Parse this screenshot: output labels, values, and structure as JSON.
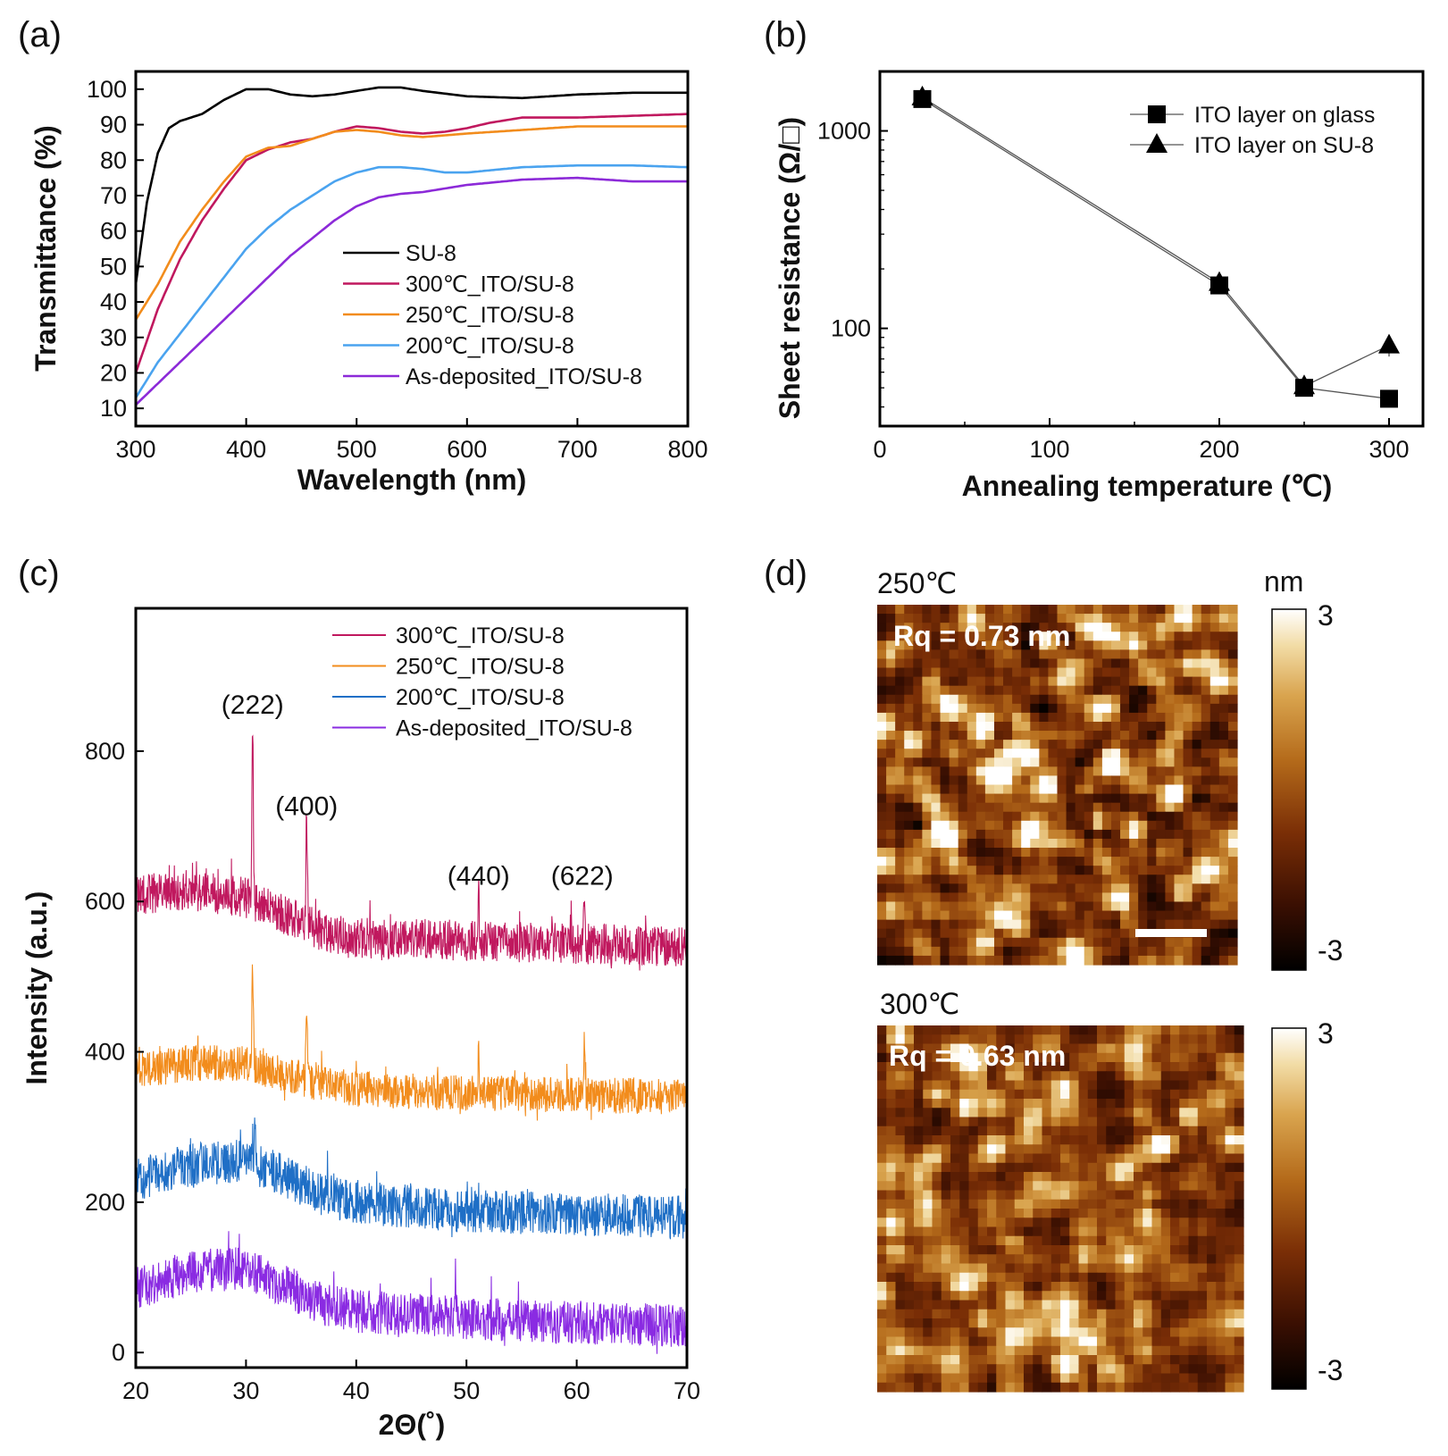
{
  "chart_data": [
    {
      "panel": "(a)",
      "type": "line",
      "xlabel": "Wavelength (nm)",
      "ylabel": "Transmittance (%)",
      "xlim": [
        300,
        800
      ],
      "ylim": [
        5,
        105
      ],
      "xticks": [
        300,
        400,
        500,
        600,
        700,
        800
      ],
      "yticks": [
        10,
        20,
        30,
        40,
        50,
        60,
        70,
        80,
        90,
        100
      ],
      "legend_position": "center-right",
      "series": [
        {
          "name": "SU-8",
          "color": "#000000",
          "x": [
            300,
            310,
            320,
            330,
            340,
            360,
            380,
            400,
            420,
            440,
            460,
            480,
            500,
            520,
            540,
            560,
            600,
            650,
            700,
            750,
            800
          ],
          "y": [
            45,
            68,
            82,
            89,
            91,
            93,
            97,
            100,
            100,
            98.5,
            98,
            98.5,
            99.5,
            100.5,
            100.5,
            99.5,
            98,
            97.5,
            98.5,
            99,
            99
          ]
        },
        {
          "name": "300℃_ITO/SU-8",
          "color": "#c0185e",
          "x": [
            300,
            320,
            340,
            360,
            380,
            400,
            420,
            440,
            460,
            480,
            500,
            520,
            540,
            560,
            580,
            600,
            620,
            650,
            700,
            750,
            800
          ],
          "y": [
            20,
            38,
            52,
            63,
            72,
            80,
            83,
            85,
            86,
            88,
            89.5,
            89,
            88,
            87.5,
            88,
            89,
            90.5,
            92,
            92,
            92.5,
            93
          ]
        },
        {
          "name": "250℃_ITO/SU-8",
          "color": "#f28c1c",
          "x": [
            300,
            320,
            340,
            360,
            380,
            400,
            420,
            440,
            460,
            480,
            500,
            520,
            540,
            560,
            580,
            600,
            650,
            700,
            750,
            800
          ],
          "y": [
            35,
            45,
            57,
            66,
            74,
            81,
            83.5,
            84,
            86,
            88,
            88.5,
            88,
            87,
            86.5,
            87,
            87.5,
            88.5,
            89.5,
            89.5,
            89.5
          ]
        },
        {
          "name": "200℃_ITO/SU-8",
          "color": "#4aa3ef",
          "x": [
            300,
            320,
            340,
            360,
            380,
            400,
            420,
            440,
            460,
            480,
            500,
            520,
            540,
            560,
            580,
            600,
            650,
            700,
            750,
            800
          ],
          "y": [
            13,
            23,
            31,
            39,
            47,
            55,
            61,
            66,
            70,
            74,
            76.5,
            78,
            78,
            77.5,
            76.5,
            76.5,
            78,
            78.5,
            78.5,
            78
          ]
        },
        {
          "name": "As-deposited_ITO/SU-8",
          "color": "#8c2ad8",
          "x": [
            300,
            320,
            340,
            360,
            380,
            400,
            420,
            440,
            460,
            480,
            500,
            520,
            540,
            560,
            580,
            600,
            650,
            700,
            750,
            800
          ],
          "y": [
            11,
            17,
            23,
            29,
            35,
            41,
            47,
            53,
            58,
            63,
            67,
            69.5,
            70.5,
            71,
            72,
            73,
            74.5,
            75,
            74,
            74
          ]
        }
      ]
    },
    {
      "panel": "(b)",
      "type": "line",
      "xlabel": "Annealing temperature (℃)",
      "ylabel": "Sheet resistance (Ω/□)",
      "yscale": "log",
      "xlim": [
        0,
        320
      ],
      "ylim": [
        32,
        2000
      ],
      "xticks": [
        0,
        100,
        200,
        300
      ],
      "yticks": [
        100,
        1000
      ],
      "legend_position": "top-right",
      "series": [
        {
          "name": "ITO layer on glass",
          "marker": "square",
          "x": [
            25,
            200,
            250,
            300
          ],
          "y": [
            1450,
            165,
            50,
            44
          ]
        },
        {
          "name": "ITO layer on SU-8",
          "marker": "triangle",
          "x": [
            25,
            200,
            250,
            300
          ],
          "y": [
            1480,
            170,
            51,
            82
          ],
          "error": [
            0,
            0,
            0,
            10
          ]
        }
      ]
    },
    {
      "panel": "(c)",
      "type": "line",
      "xlabel": "2Θ(˚)",
      "ylabel": "Intensity (a.u.)",
      "xlim": [
        20,
        70
      ],
      "ylim": [
        -20,
        990
      ],
      "xticks": [
        20,
        30,
        40,
        50,
        60,
        70
      ],
      "yticks": [
        0,
        200,
        400,
        600,
        800
      ],
      "legend_position": "top-right",
      "annotations": [
        {
          "text": "(222)",
          "x": 30.6,
          "y": 850
        },
        {
          "text": "(400)",
          "x": 35.5,
          "y": 715
        },
        {
          "text": "(440)",
          "x": 51.1,
          "y": 622
        },
        {
          "text": "(622)",
          "x": 60.5,
          "y": 622
        }
      ],
      "series": [
        {
          "name": "300℃_ITO/SU-8",
          "color": "#c0185e",
          "baseline": {
            "x": [
              20,
              25,
              30,
              33,
              37,
              40,
              50,
              70
            ],
            "y": [
              610,
              615,
              605,
              585,
              560,
              552,
              548,
              540
            ]
          },
          "noise": 34,
          "peaks": [
            {
              "x": 30.6,
              "y": 835
            },
            {
              "x": 35.5,
              "y": 720
            },
            {
              "x": 51.1,
              "y": 605
            },
            {
              "x": 60.7,
              "y": 608
            }
          ]
        },
        {
          "name": "250℃_ITO/SU-8",
          "color": "#f28c1c",
          "baseline": {
            "x": [
              20,
              25,
              30,
              33,
              37,
              40,
              50,
              70
            ],
            "y": [
              375,
              385,
              385,
              372,
              357,
              350,
              345,
              340
            ]
          },
          "noise": 30,
          "peaks": [
            {
              "x": 30.6,
              "y": 510
            },
            {
              "x": 35.5,
              "y": 465
            },
            {
              "x": 51.1,
              "y": 400
            },
            {
              "x": 60.7,
              "y": 415
            }
          ]
        },
        {
          "name": "200℃_ITO/SU-8",
          "color": "#1f6fc6",
          "baseline": {
            "x": [
              20,
              25,
              30,
              33,
              37,
              40,
              50,
              70
            ],
            "y": [
              230,
              250,
              255,
              238,
              210,
              198,
              188,
              180
            ]
          },
          "noise": 36,
          "peaks": [
            {
              "x": 30.8,
              "y": 305
            }
          ]
        },
        {
          "name": "As-deposited_ITO/SU-8",
          "color": "#8a2be2",
          "baseline": {
            "x": [
              20,
              25,
              30,
              33,
              37,
              40,
              50,
              70
            ],
            "y": [
              85,
              108,
              112,
              92,
              65,
              55,
              45,
              35
            ]
          },
          "noise": 36,
          "peaks": [
            {
              "x": 49.0,
              "y": 103
            }
          ]
        }
      ]
    }
  ],
  "figure": {
    "panel_labels": {
      "a": "(a)",
      "b": "(b)",
      "c": "(c)",
      "d": "(d)"
    }
  },
  "afm": {
    "unit": "nm",
    "colorbar_max": "3",
    "colorbar_min": "-3",
    "colors": [
      "#000000",
      "#3a0f02",
      "#7a2e06",
      "#b46a1a",
      "#d9a44e",
      "#f2dca6",
      "#ffffff"
    ],
    "images": [
      {
        "temp": "250℃",
        "rq": "Rq = 0.73 nm",
        "seed": 7,
        "scale_bar": true
      },
      {
        "temp": "300℃",
        "rq": "Rq = 0.63 nm",
        "seed": 19,
        "scale_bar": false
      }
    ]
  }
}
